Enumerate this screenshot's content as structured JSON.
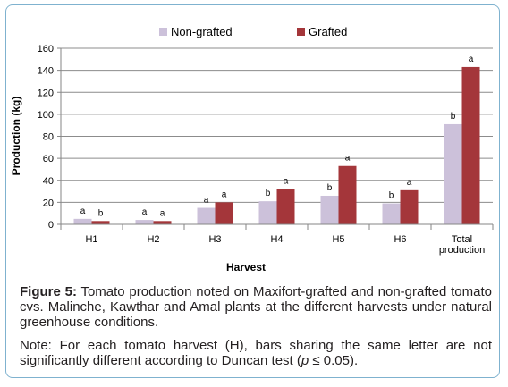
{
  "chart_data": {
    "type": "bar",
    "categories": [
      "H1",
      "H2",
      "H3",
      "H4",
      "H5",
      "H6",
      "Total production"
    ],
    "category_lines": [
      [
        "H1"
      ],
      [
        "H2"
      ],
      [
        "H3"
      ],
      [
        "H4"
      ],
      [
        "H5"
      ],
      [
        "H6"
      ],
      [
        "Total",
        "production"
      ]
    ],
    "series": [
      {
        "name": "Non-grafted",
        "color": "#ccc1da",
        "values": [
          5,
          4,
          15,
          21,
          26,
          19,
          91
        ],
        "letters": [
          "a",
          "a",
          "a",
          "b",
          "b",
          "b",
          "b"
        ]
      },
      {
        "name": "Grafted",
        "color": "#a4363a",
        "values": [
          3,
          3,
          20,
          32,
          53,
          31,
          143
        ],
        "letters": [
          "b",
          "a",
          "a",
          "a",
          "a",
          "a",
          "a"
        ]
      }
    ],
    "xlabel": "Harvest",
    "ylabel": "Production (kg)",
    "ylim": [
      0,
      160
    ],
    "yticks": [
      0,
      20,
      40,
      60,
      80,
      100,
      120,
      140,
      160
    ],
    "grid": true,
    "legend_position": "top"
  },
  "caption": {
    "label": "Figure 5:",
    "text": " Tomato production noted on Maxifort-grafted and non-grafted tomato cvs. Malinche, Kawthar and Amal plants at the different harvests under natural greenhouse conditions."
  },
  "note": {
    "prefix": "Note: For each tomato harvest (H), bars sharing the same letter are not significantly different according to Duncan test (",
    "p_symbol": "p",
    "suffix": " ≤ 0.05)."
  }
}
